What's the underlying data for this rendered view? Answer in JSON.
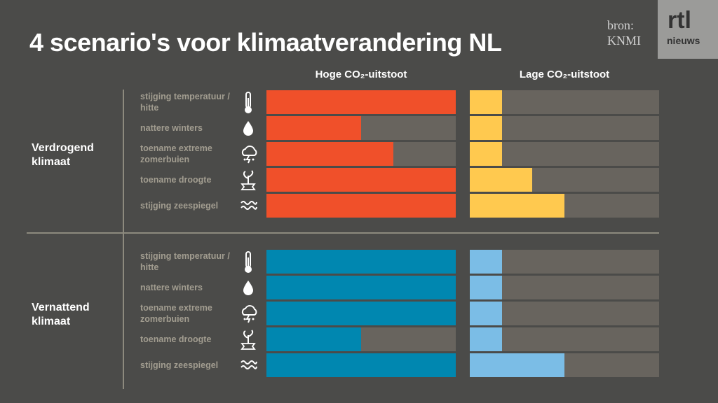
{
  "chart_data": {
    "type": "bar",
    "title": "4 scenario's voor klimaatverandering NL",
    "source": [
      "bron:",
      "KNMI"
    ],
    "logo": [
      "rtl",
      "nieuws"
    ],
    "xlim": [
      0,
      100
    ],
    "columns": [
      "Hoge CO₂-uitstoot",
      "Lage CO₂-uitstoot"
    ],
    "groups": [
      {
        "name": "Verdrogend klimaat",
        "categories": [
          "stijging temperatuur / hitte",
          "nattere winters",
          "toename extreme zomerbuien",
          "toename droogte",
          "stijging zeespiegel"
        ],
        "series": [
          {
            "name": "Hoge CO₂-uitstoot",
            "color": "#f0502a",
            "values": [
              100,
              50,
              67,
              100,
              100
            ]
          },
          {
            "name": "Lage CO₂-uitstoot",
            "color": "#ffc94f",
            "values": [
              17,
              17,
              17,
              33,
              50
            ]
          }
        ]
      },
      {
        "name": "Vernattend klimaat",
        "categories": [
          "stijging temperatuur / hitte",
          "nattere winters",
          "toename extreme zomerbuien",
          "toename droogte",
          "stijging zeespiegel"
        ],
        "series": [
          {
            "name": "Hoge CO₂-uitstoot",
            "color": "#0087b0",
            "values": [
              100,
              100,
              100,
              50,
              100
            ]
          },
          {
            "name": "Lage CO₂-uitstoot",
            "color": "#7bbde6",
            "values": [
              17,
              17,
              17,
              17,
              50
            ]
          }
        ]
      }
    ]
  }
}
